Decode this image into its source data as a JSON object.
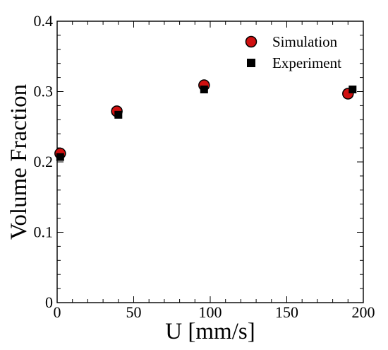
{
  "chart_data": {
    "type": "scatter",
    "xlabel": "U [mm/s]",
    "ylabel": "Volume Fraction",
    "xlim": [
      0,
      200
    ],
    "ylim": [
      0,
      0.4
    ],
    "x_ticks": [
      0,
      50,
      100,
      150,
      200
    ],
    "y_ticks": [
      0,
      0.1,
      0.2,
      0.3,
      0.4
    ],
    "x_tick_labels": [
      "0",
      "50",
      "100",
      "150",
      "200"
    ],
    "y_tick_labels": [
      "0",
      "0.1",
      "0.2",
      "0.3",
      "0.4"
    ],
    "legend_position": "top-right",
    "grid": false,
    "series": [
      {
        "name": "Simulation",
        "marker": "circle",
        "color": "#d01010",
        "edge_color": "#000000",
        "x": [
          2,
          39,
          96,
          190
        ],
        "y": [
          0.212,
          0.272,
          0.309,
          0.297
        ]
      },
      {
        "name": "Experiment",
        "marker": "square",
        "color": "#000000",
        "x": [
          2,
          40,
          96,
          193
        ],
        "y": [
          0.207,
          0.267,
          0.303,
          0.303
        ]
      }
    ]
  }
}
